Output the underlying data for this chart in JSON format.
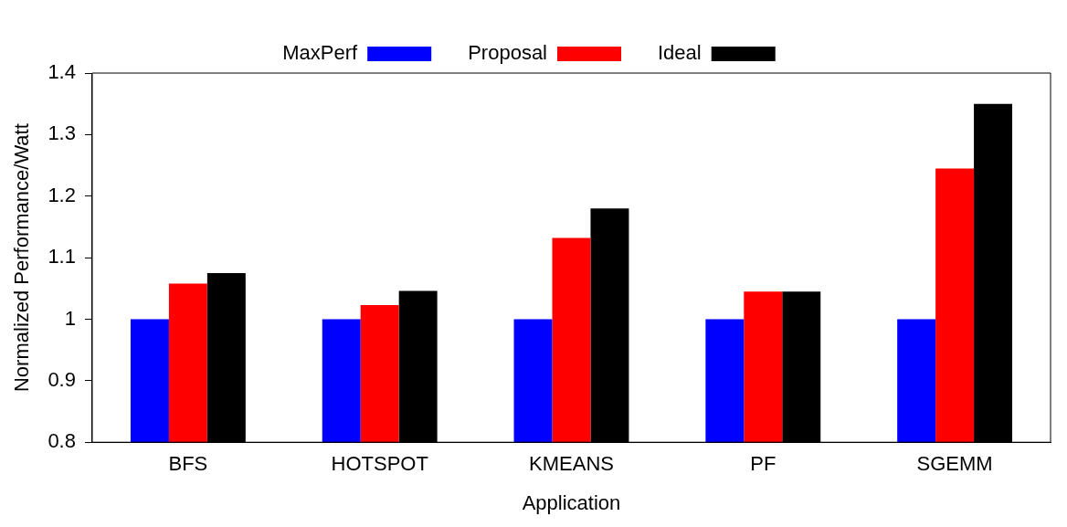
{
  "chart_data": {
    "type": "bar",
    "xlabel": "Application",
    "ylabel": "Normalized Performance/Watt",
    "categories": [
      "BFS",
      "HOTSPOT",
      "KMEANS",
      "PF",
      "SGEMM"
    ],
    "series": [
      {
        "name": "MaxPerf",
        "color": "#0000ff",
        "values": [
          1,
          1,
          1,
          1,
          1
        ]
      },
      {
        "name": "Proposal",
        "color": "#ff0000",
        "values": [
          1.058,
          1.023,
          1.132,
          1.045,
          1.245
        ]
      },
      {
        "name": "Ideal",
        "color": "#000000",
        "values": [
          1.075,
          1.046,
          1.18,
          1.045,
          1.35
        ]
      }
    ],
    "ylim": [
      0.8,
      1.4
    ],
    "yticks": [
      {
        "value": 0.8,
        "label": "0.8"
      },
      {
        "value": 0.9,
        "label": "0.9"
      },
      {
        "value": 1,
        "label": "1"
      },
      {
        "value": 1.1,
        "label": "1.1"
      },
      {
        "value": 1.2,
        "label": "1.2"
      },
      {
        "value": 1.3,
        "label": "1.3"
      },
      {
        "value": 1.4,
        "label": "1.4"
      }
    ],
    "grid": false,
    "legend": "top"
  }
}
